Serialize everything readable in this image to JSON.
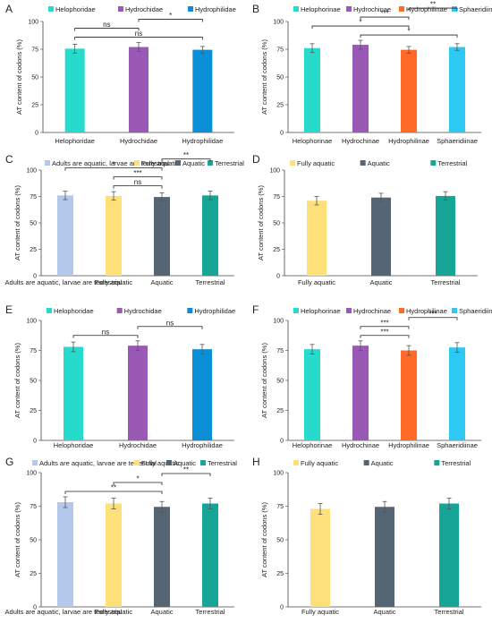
{
  "chart_data": [
    {
      "panel": "A",
      "type": "bar",
      "categories": [
        "Helophoridae",
        "Hydrochidae",
        "Hydrophilidae"
      ],
      "values": [
        75.5,
        77.0,
        74.5
      ],
      "errors": [
        4.0,
        4.0,
        3.0
      ],
      "colors": [
        "#26dbcc",
        "#9b59b6",
        "#0a8fd6"
      ],
      "legend": [
        "Helophoridae",
        "Hydrochidae",
        "Hydrophilidae"
      ],
      "ylabel": "AT content of codons (%)",
      "ylim": [
        0,
        100
      ],
      "yticks": [
        0,
        25,
        50,
        75,
        100
      ],
      "significance": [
        {
          "from": 0,
          "to": 2,
          "label": "ns"
        },
        {
          "from": 0,
          "to": 1,
          "label": "ns"
        },
        {
          "from": 1,
          "to": 2,
          "label": "*"
        }
      ]
    },
    {
      "panel": "B",
      "type": "bar",
      "categories": [
        "Helophorinae",
        "Hydrochinae",
        "Hydrophilinae",
        "Sphaeridiinae"
      ],
      "values": [
        76.0,
        79.0,
        74.5,
        77.0
      ],
      "errors": [
        4.0,
        4.0,
        3.0,
        3.0
      ],
      "colors": [
        "#26dbcc",
        "#9b59b6",
        "#ff6a26",
        "#2ec8f5"
      ],
      "legend": [
        "Helophorinae",
        "Hydrochinae",
        "Hydrophilinae",
        "Sphaeridiinae"
      ],
      "ylabel": "AT content of codons (%)",
      "ylim": [
        0,
        100
      ],
      "yticks": [
        0,
        25,
        50,
        75,
        100
      ],
      "significance": [
        {
          "from": 1,
          "to": 3,
          "label": "*"
        },
        {
          "from": 0,
          "to": 2,
          "label": "*"
        },
        {
          "from": 1,
          "to": 2,
          "label": "***"
        },
        {
          "from": 2,
          "to": 3,
          "label": "**"
        }
      ]
    },
    {
      "panel": "C",
      "type": "bar",
      "categories": [
        "Adults are aquatic, larvae are terrestrial",
        "Fully aquatic",
        "Aquatic",
        "Terrestrial"
      ],
      "values": [
        76.0,
        75.5,
        74.5,
        76.0
      ],
      "errors": [
        4.0,
        4.0,
        4.0,
        4.0
      ],
      "colors": [
        "#b3c8ea",
        "#fde07a",
        "#566573",
        "#16a597"
      ],
      "legend": [
        "Adults are aquatic, larvae are terrestrial",
        "Fully aquatic",
        "Aquatic",
        "Terrestrial"
      ],
      "ylabel": "AT content of codons (%)",
      "ylim": [
        0,
        100
      ],
      "yticks": [
        0,
        25,
        50,
        75,
        100
      ],
      "significance": [
        {
          "from": 1,
          "to": 2,
          "label": "ns"
        },
        {
          "from": 1,
          "to": 2,
          "label": "***"
        },
        {
          "from": 0,
          "to": 2,
          "label": "*"
        },
        {
          "from": 2,
          "to": 3,
          "label": "**"
        }
      ]
    },
    {
      "panel": "D",
      "type": "bar",
      "categories": [
        "Fully aquatic",
        "Aquatic",
        "Terrestrial"
      ],
      "values": [
        71.0,
        74.0,
        75.5
      ],
      "errors": [
        4.0,
        4.0,
        4.0
      ],
      "colors": [
        "#fde07a",
        "#566573",
        "#16a597"
      ],
      "legend": [
        "Fully aquatic",
        "Aquatic",
        "Terrestrial"
      ],
      "ylabel": "AT content of codons (%)",
      "ylim": [
        0,
        100
      ],
      "yticks": [
        0,
        25,
        50,
        75,
        100
      ],
      "significance": []
    },
    {
      "panel": "E",
      "type": "bar",
      "categories": [
        "Helophoridae",
        "Hydrochidae",
        "Hydrophilidae"
      ],
      "values": [
        78.0,
        79.0,
        76.0
      ],
      "errors": [
        4.0,
        4.0,
        4.0
      ],
      "colors": [
        "#26dbcc",
        "#9b59b6",
        "#0a8fd6"
      ],
      "legend": [
        "Helophoridae",
        "Hydrochidae",
        "Hydrophilidae"
      ],
      "ylabel": "AT content of codons (%)",
      "ylim": [
        0,
        100
      ],
      "yticks": [
        0,
        25,
        50,
        75,
        100
      ],
      "significance": [
        {
          "from": 0,
          "to": 1,
          "label": "ns"
        },
        {
          "from": 1,
          "to": 2,
          "label": "ns"
        }
      ]
    },
    {
      "panel": "F",
      "type": "bar",
      "categories": [
        "Helophorinae",
        "Hydrochinae",
        "Hydrophilinae",
        "Sphaeridiinae"
      ],
      "values": [
        76.0,
        79.0,
        75.0,
        77.5
      ],
      "errors": [
        4.0,
        4.0,
        4.0,
        4.0
      ],
      "colors": [
        "#26dbcc",
        "#9b59b6",
        "#ff6a26",
        "#2ec8f5"
      ],
      "legend": [
        "Helophorinae",
        "Hydrochinae",
        "Hydrophilinae",
        "Sphaeridiinae"
      ],
      "ylabel": "AT content of codons (%)",
      "ylim": [
        0,
        100
      ],
      "yticks": [
        0,
        25,
        50,
        75,
        100
      ],
      "significance": [
        {
          "from": 1,
          "to": 2,
          "label": "***"
        },
        {
          "from": 1,
          "to": 2,
          "label": "***"
        },
        {
          "from": 2,
          "to": 3,
          "label": "***"
        }
      ]
    },
    {
      "panel": "G",
      "type": "bar",
      "categories": [
        "Adults are aquatic, larvae are terrestrial",
        "Fully aquatic",
        "Aquatic",
        "Terrestrial"
      ],
      "values": [
        78.0,
        77.0,
        74.5,
        77.0
      ],
      "errors": [
        4.0,
        4.0,
        4.0,
        4.0
      ],
      "colors": [
        "#b3c8ea",
        "#fde07a",
        "#566573",
        "#16a597"
      ],
      "legend": [
        "Adults are aquatic, larvae are terrestrial",
        "Fully aquatic",
        "Aquatic",
        "Terrestrial"
      ],
      "ylabel": "AT content of codons (%)",
      "ylim": [
        0,
        100
      ],
      "yticks": [
        0,
        25,
        50,
        75,
        100
      ],
      "significance": [
        {
          "from": 0,
          "to": 2,
          "label": "**"
        },
        {
          "from": 1,
          "to": 2,
          "label": "*"
        },
        {
          "from": 2,
          "to": 3,
          "label": "**"
        }
      ]
    },
    {
      "panel": "H",
      "type": "bar",
      "categories": [
        "Fully aquatic",
        "Aquatic",
        "Terrestrial"
      ],
      "values": [
        73.0,
        74.5,
        77.0
      ],
      "errors": [
        4.0,
        4.0,
        4.0
      ],
      "colors": [
        "#fde07a",
        "#566573",
        "#16a597"
      ],
      "legend": [
        "Fully aquatic",
        "Aquatic",
        "Terrestrial"
      ],
      "ylabel": "AT content of codons (%)",
      "ylim": [
        0,
        100
      ],
      "yticks": [
        0,
        25,
        50,
        75,
        100
      ],
      "significance": []
    }
  ]
}
